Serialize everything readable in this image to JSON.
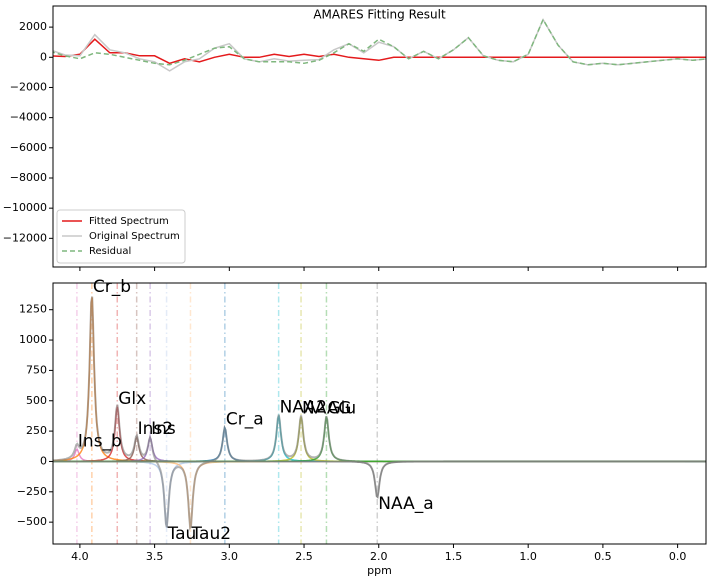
{
  "chart_data": [
    {
      "type": "line",
      "title": "AMARES Fitting Result",
      "x": [
        4.2,
        4.1,
        4.0,
        3.9,
        3.8,
        3.7,
        3.6,
        3.5,
        3.4,
        3.3,
        3.2,
        3.1,
        3.0,
        2.9,
        2.8,
        2.7,
        2.6,
        2.5,
        2.4,
        2.3,
        2.2,
        2.1,
        2.0,
        1.9,
        1.8,
        1.7,
        1.6,
        1.5,
        1.4,
        1.3,
        1.2,
        1.1,
        1.0,
        0.9,
        0.8,
        0.7,
        0.6,
        0.5,
        0.4,
        0.3,
        0.2,
        0.1,
        0.0,
        -0.1,
        -0.2
      ],
      "xlim": [
        4.18,
        -0.19
      ],
      "xticks": [
        4,
        3.5,
        3,
        2.5,
        2,
        1.5,
        1,
        0.5,
        0
      ],
      "show_xtick_labels": false,
      "ylim": [
        -13900,
        3400
      ],
      "yticks": [
        2000,
        0,
        {
          "value": -2000,
          "label": "−2000"
        },
        {
          "value": -4000,
          "label": "−4000"
        },
        {
          "value": -6000,
          "label": "−6000"
        },
        {
          "value": -8000,
          "label": "−8000"
        },
        {
          "value": -10000,
          "label": "−10000"
        },
        {
          "value": -12000,
          "label": "−12000"
        }
      ],
      "legend": "lower left",
      "series": [
        {
          "name": "Fitted Spectrum",
          "color": "#e41a1c",
          "linestyle": "solid",
          "values": [
            100,
            50,
            200,
            1200,
            300,
            300,
            100,
            100,
            -400,
            -100,
            -300,
            0,
            200,
            0,
            0,
            200,
            50,
            200,
            50,
            200,
            0,
            -100,
            -200,
            0,
            0,
            0,
            0,
            0,
            0,
            0,
            0,
            0,
            0,
            0,
            0,
            0,
            0,
            0,
            0,
            0,
            0,
            0,
            0,
            0,
            0
          ]
        },
        {
          "name": "Original Spectrum",
          "color": "#c8c8c8",
          "linestyle": "solid",
          "values": [
            500,
            150,
            100,
            1500,
            500,
            300,
            -100,
            -300,
            -900,
            -300,
            -100,
            600,
            900,
            -100,
            -300,
            -100,
            -250,
            -200,
            -150,
            500,
            900,
            300,
            1000,
            700,
            -100,
            400,
            -100,
            500,
            1300,
            100,
            -200,
            -300,
            200,
            2500,
            800,
            -300,
            -500,
            -400,
            -500,
            -400,
            -300,
            -200,
            -100,
            -200,
            -100
          ]
        },
        {
          "name": "Residual",
          "color": "#7fb77e",
          "linestyle": "dashed",
          "values": [
            400,
            100,
            -100,
            300,
            200,
            0,
            -200,
            -400,
            -500,
            -200,
            200,
            600,
            700,
            -100,
            -300,
            -300,
            -300,
            -400,
            -200,
            300,
            900,
            400,
            1200,
            700,
            -100,
            400,
            -100,
            500,
            1300,
            100,
            -200,
            -300,
            200,
            2500,
            800,
            -300,
            -500,
            -400,
            -500,
            -400,
            -300,
            -200,
            -100,
            -200,
            -100
          ]
        }
      ]
    },
    {
      "type": "peaks",
      "xlabel": "ppm",
      "xlim": [
        4.18,
        -0.19
      ],
      "xticks": [
        {
          "value": 4,
          "label": "4.0"
        },
        {
          "value": 3.5,
          "label": "3.5"
        },
        {
          "value": 3,
          "label": "3.0"
        },
        {
          "value": 2.5,
          "label": "2.5"
        },
        {
          "value": 2,
          "label": "2.0"
        },
        {
          "value": 1.5,
          "label": "1.5"
        },
        {
          "value": 1,
          "label": "1.0"
        },
        {
          "value": 0.5,
          "label": "0.5"
        },
        {
          "value": 0,
          "label": "0.0"
        }
      ],
      "show_xtick_labels": true,
      "ylim": [
        -680,
        1470
      ],
      "yticks": [
        1250,
        1000,
        750,
        500,
        250,
        0,
        {
          "value": -250,
          "label": "−250"
        },
        {
          "value": -500,
          "label": "−500"
        }
      ],
      "series": [
        {
          "name": "Ins_b",
          "color": "#e377c2",
          "center": 4.02,
          "peak": 100
        },
        {
          "name": "Cr_b",
          "color": "#ff7f0e",
          "center": 3.92,
          "peak": 1370
        },
        {
          "name": "Glx",
          "color": "#d62728",
          "center": 3.75,
          "peak": 450
        },
        {
          "name": "Ins2",
          "color": "#8c564b",
          "center": 3.62,
          "peak": 200
        },
        {
          "name": "Ins",
          "color": "#9467bd",
          "center": 3.53,
          "peak": 200
        },
        {
          "name": "Tau",
          "color": "#aec7e8",
          "center": 3.42,
          "peak": -550
        },
        {
          "name": "Tau2",
          "color": "#ffbb78",
          "center": 3.26,
          "peak": -550
        },
        {
          "name": "Cr_a",
          "color": "#1f77b4",
          "center": 3.03,
          "peak": 280
        },
        {
          "name": "NAA2",
          "color": "#17becf",
          "center": 2.67,
          "peak": 380
        },
        {
          "name": "NAAG",
          "color": "#bcbd22",
          "center": 2.52,
          "peak": 370
        },
        {
          "name": "Glu",
          "color": "#2ca02c",
          "center": 2.35,
          "peak": 370
        },
        {
          "name": "NAA_a",
          "color": "#7f7f7f",
          "center": 2.01,
          "peak": -300
        }
      ]
    }
  ]
}
